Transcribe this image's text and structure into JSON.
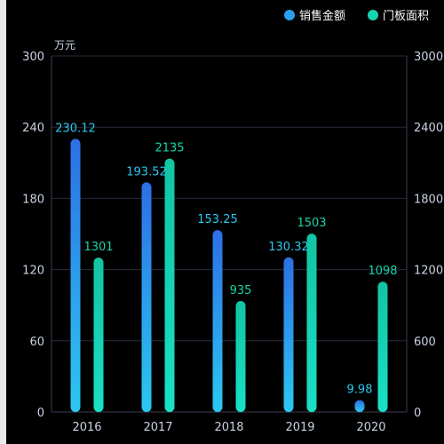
{
  "chart_data": {
    "type": "bar",
    "categories": [
      "2016",
      "2017",
      "2018",
      "2019",
      "2020"
    ],
    "series": [
      {
        "name": "销售金额",
        "axis": "left",
        "values": [
          230.12,
          193.52,
          153.25,
          130.32,
          9.98
        ],
        "value_labels": [
          "230.12",
          "193.52",
          "153.25",
          "130.32",
          "9.98"
        ],
        "colors": [
          "#2d6fe6",
          "#2bc8f0"
        ],
        "label_color": "#2bc8f0"
      },
      {
        "name": "门板面积",
        "axis": "right",
        "values": [
          1301,
          2135,
          935,
          1503,
          1098
        ],
        "value_labels": [
          "1301",
          "2135",
          "935",
          "1503",
          "1098"
        ],
        "colors": [
          "#12c4a3",
          "#19e0c6"
        ],
        "label_color": "#17d4a8"
      }
    ],
    "left_axis": {
      "unit": "万元",
      "min": 0,
      "max": 300,
      "ticks": [
        "0",
        "60",
        "120",
        "180",
        "240",
        "300"
      ]
    },
    "right_axis": {
      "min": 0,
      "max": 3000,
      "ticks": [
        "0",
        "600",
        "1200",
        "1800",
        "2400",
        "3000"
      ]
    },
    "grid": true,
    "legend_position": "top-right"
  }
}
